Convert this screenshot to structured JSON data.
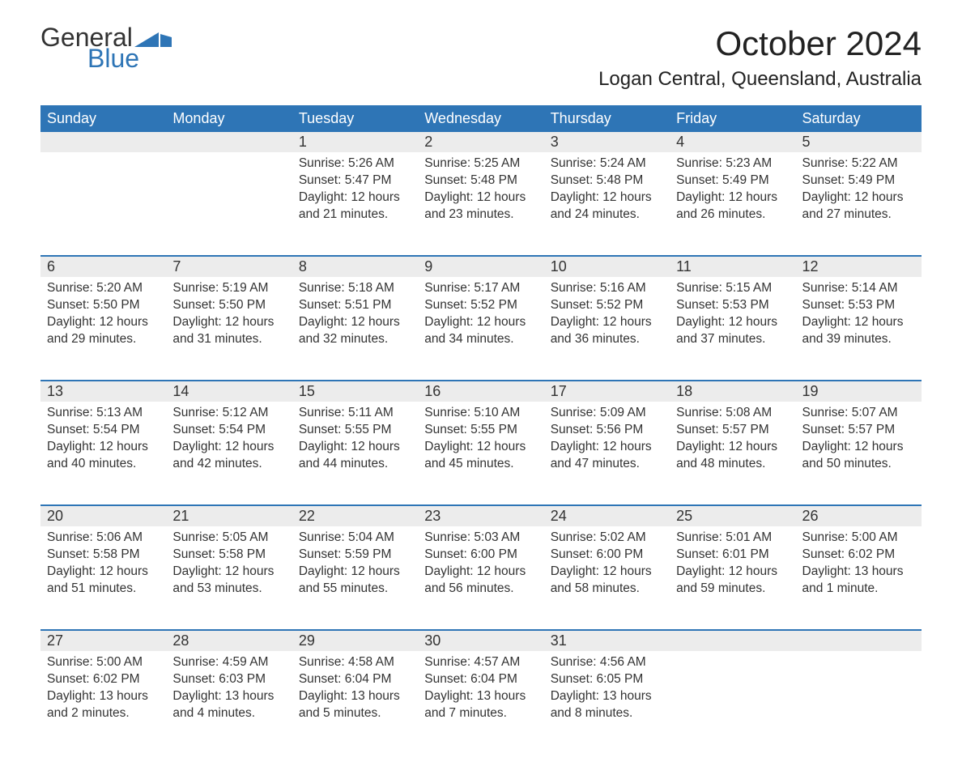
{
  "brand": {
    "part1": "General",
    "part2": "Blue",
    "accent_color": "#2e75b6"
  },
  "title": "October 2024",
  "location": "Logan Central, Queensland, Australia",
  "colors": {
    "header_bg": "#2e75b6",
    "header_text": "#ffffff",
    "daynum_bg": "#ececec",
    "body_text": "#333333",
    "page_bg": "#ffffff"
  },
  "typography": {
    "title_fontsize": 42,
    "location_fontsize": 24,
    "dayheader_fontsize": 18,
    "daynum_fontsize": 18,
    "body_fontsize": 15.5
  },
  "layout": {
    "columns": 7,
    "rows": 5,
    "first_weekday": "Sunday"
  },
  "day_headers": [
    "Sunday",
    "Monday",
    "Tuesday",
    "Wednesday",
    "Thursday",
    "Friday",
    "Saturday"
  ],
  "weeks": [
    [
      {
        "n": "",
        "lines": []
      },
      {
        "n": "",
        "lines": []
      },
      {
        "n": "1",
        "lines": [
          "Sunrise: 5:26 AM",
          "Sunset: 5:47 PM",
          "Daylight: 12 hours",
          "and 21 minutes."
        ]
      },
      {
        "n": "2",
        "lines": [
          "Sunrise: 5:25 AM",
          "Sunset: 5:48 PM",
          "Daylight: 12 hours",
          "and 23 minutes."
        ]
      },
      {
        "n": "3",
        "lines": [
          "Sunrise: 5:24 AM",
          "Sunset: 5:48 PM",
          "Daylight: 12 hours",
          "and 24 minutes."
        ]
      },
      {
        "n": "4",
        "lines": [
          "Sunrise: 5:23 AM",
          "Sunset: 5:49 PM",
          "Daylight: 12 hours",
          "and 26 minutes."
        ]
      },
      {
        "n": "5",
        "lines": [
          "Sunrise: 5:22 AM",
          "Sunset: 5:49 PM",
          "Daylight: 12 hours",
          "and 27 minutes."
        ]
      }
    ],
    [
      {
        "n": "6",
        "lines": [
          "Sunrise: 5:20 AM",
          "Sunset: 5:50 PM",
          "Daylight: 12 hours",
          "and 29 minutes."
        ]
      },
      {
        "n": "7",
        "lines": [
          "Sunrise: 5:19 AM",
          "Sunset: 5:50 PM",
          "Daylight: 12 hours",
          "and 31 minutes."
        ]
      },
      {
        "n": "8",
        "lines": [
          "Sunrise: 5:18 AM",
          "Sunset: 5:51 PM",
          "Daylight: 12 hours",
          "and 32 minutes."
        ]
      },
      {
        "n": "9",
        "lines": [
          "Sunrise: 5:17 AM",
          "Sunset: 5:52 PM",
          "Daylight: 12 hours",
          "and 34 minutes."
        ]
      },
      {
        "n": "10",
        "lines": [
          "Sunrise: 5:16 AM",
          "Sunset: 5:52 PM",
          "Daylight: 12 hours",
          "and 36 minutes."
        ]
      },
      {
        "n": "11",
        "lines": [
          "Sunrise: 5:15 AM",
          "Sunset: 5:53 PM",
          "Daylight: 12 hours",
          "and 37 minutes."
        ]
      },
      {
        "n": "12",
        "lines": [
          "Sunrise: 5:14 AM",
          "Sunset: 5:53 PM",
          "Daylight: 12 hours",
          "and 39 minutes."
        ]
      }
    ],
    [
      {
        "n": "13",
        "lines": [
          "Sunrise: 5:13 AM",
          "Sunset: 5:54 PM",
          "Daylight: 12 hours",
          "and 40 minutes."
        ]
      },
      {
        "n": "14",
        "lines": [
          "Sunrise: 5:12 AM",
          "Sunset: 5:54 PM",
          "Daylight: 12 hours",
          "and 42 minutes."
        ]
      },
      {
        "n": "15",
        "lines": [
          "Sunrise: 5:11 AM",
          "Sunset: 5:55 PM",
          "Daylight: 12 hours",
          "and 44 minutes."
        ]
      },
      {
        "n": "16",
        "lines": [
          "Sunrise: 5:10 AM",
          "Sunset: 5:55 PM",
          "Daylight: 12 hours",
          "and 45 minutes."
        ]
      },
      {
        "n": "17",
        "lines": [
          "Sunrise: 5:09 AM",
          "Sunset: 5:56 PM",
          "Daylight: 12 hours",
          "and 47 minutes."
        ]
      },
      {
        "n": "18",
        "lines": [
          "Sunrise: 5:08 AM",
          "Sunset: 5:57 PM",
          "Daylight: 12 hours",
          "and 48 minutes."
        ]
      },
      {
        "n": "19",
        "lines": [
          "Sunrise: 5:07 AM",
          "Sunset: 5:57 PM",
          "Daylight: 12 hours",
          "and 50 minutes."
        ]
      }
    ],
    [
      {
        "n": "20",
        "lines": [
          "Sunrise: 5:06 AM",
          "Sunset: 5:58 PM",
          "Daylight: 12 hours",
          "and 51 minutes."
        ]
      },
      {
        "n": "21",
        "lines": [
          "Sunrise: 5:05 AM",
          "Sunset: 5:58 PM",
          "Daylight: 12 hours",
          "and 53 minutes."
        ]
      },
      {
        "n": "22",
        "lines": [
          "Sunrise: 5:04 AM",
          "Sunset: 5:59 PM",
          "Daylight: 12 hours",
          "and 55 minutes."
        ]
      },
      {
        "n": "23",
        "lines": [
          "Sunrise: 5:03 AM",
          "Sunset: 6:00 PM",
          "Daylight: 12 hours",
          "and 56 minutes."
        ]
      },
      {
        "n": "24",
        "lines": [
          "Sunrise: 5:02 AM",
          "Sunset: 6:00 PM",
          "Daylight: 12 hours",
          "and 58 minutes."
        ]
      },
      {
        "n": "25",
        "lines": [
          "Sunrise: 5:01 AM",
          "Sunset: 6:01 PM",
          "Daylight: 12 hours",
          "and 59 minutes."
        ]
      },
      {
        "n": "26",
        "lines": [
          "Sunrise: 5:00 AM",
          "Sunset: 6:02 PM",
          "Daylight: 13 hours",
          "and 1 minute."
        ]
      }
    ],
    [
      {
        "n": "27",
        "lines": [
          "Sunrise: 5:00 AM",
          "Sunset: 6:02 PM",
          "Daylight: 13 hours",
          "and 2 minutes."
        ]
      },
      {
        "n": "28",
        "lines": [
          "Sunrise: 4:59 AM",
          "Sunset: 6:03 PM",
          "Daylight: 13 hours",
          "and 4 minutes."
        ]
      },
      {
        "n": "29",
        "lines": [
          "Sunrise: 4:58 AM",
          "Sunset: 6:04 PM",
          "Daylight: 13 hours",
          "and 5 minutes."
        ]
      },
      {
        "n": "30",
        "lines": [
          "Sunrise: 4:57 AM",
          "Sunset: 6:04 PM",
          "Daylight: 13 hours",
          "and 7 minutes."
        ]
      },
      {
        "n": "31",
        "lines": [
          "Sunrise: 4:56 AM",
          "Sunset: 6:05 PM",
          "Daylight: 13 hours",
          "and 8 minutes."
        ]
      },
      {
        "n": "",
        "lines": []
      },
      {
        "n": "",
        "lines": []
      }
    ]
  ]
}
